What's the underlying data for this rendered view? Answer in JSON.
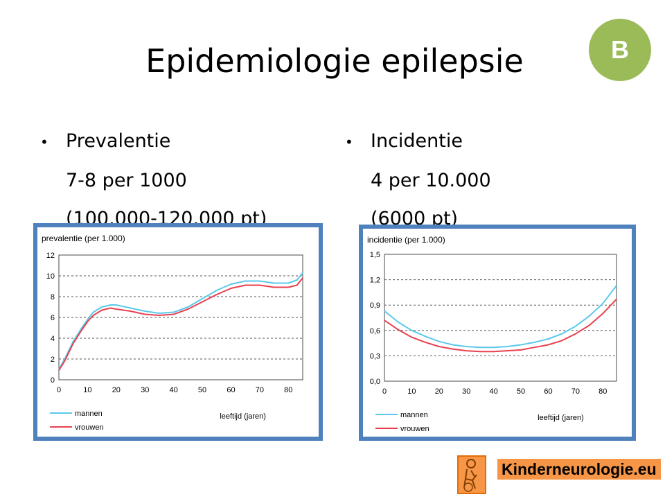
{
  "slide": {
    "title": "Epidemiologie epilepsie",
    "badge": "B"
  },
  "left_column": {
    "bullet_label": "Prevalentie",
    "line1": "7-8 per 1000",
    "line2": "(100.000-120.000 pt)"
  },
  "right_column": {
    "bullet_label": "Incidentie",
    "line1": "4 per 10.000",
    "line2": "(6000 pt)"
  },
  "logo": {
    "text": "Kinderneurologie.eu"
  },
  "colors": {
    "badge": "#9bbb59",
    "chart_frame": "#4f81bd",
    "mannen": "#5bc8ec",
    "vrouwen": "#e8404f",
    "logo_bg": "#f79646"
  },
  "chart_data": [
    {
      "type": "line",
      "title": "prevalentie (per 1.000)",
      "xlabel": "leeftijd (jaren)",
      "ylabel": "",
      "xlim": [
        0,
        85
      ],
      "ylim": [
        0,
        12
      ],
      "x_ticks": [
        "0",
        "10",
        "20",
        "30",
        "40",
        "50",
        "60",
        "70",
        "80"
      ],
      "y_ticks": [
        "0",
        "2",
        "4",
        "6",
        "8",
        "10",
        "12"
      ],
      "grid": "horizontal dashed",
      "legend": "bottom-left",
      "x": [
        0,
        2,
        5,
        8,
        10,
        12,
        15,
        18,
        20,
        25,
        30,
        35,
        40,
        45,
        50,
        55,
        60,
        65,
        70,
        75,
        80,
        83,
        85
      ],
      "series": [
        {
          "name": "mannen",
          "color": "#5bc8ec",
          "values": [
            1.0,
            2.0,
            3.7,
            5.0,
            5.8,
            6.5,
            7.0,
            7.2,
            7.2,
            6.9,
            6.6,
            6.4,
            6.5,
            7.0,
            7.8,
            8.6,
            9.2,
            9.5,
            9.5,
            9.3,
            9.3,
            9.6,
            10.3
          ]
        },
        {
          "name": "vrouwen",
          "color": "#e8404f",
          "values": [
            0.9,
            1.8,
            3.5,
            4.8,
            5.6,
            6.2,
            6.7,
            6.9,
            6.8,
            6.6,
            6.3,
            6.2,
            6.3,
            6.8,
            7.5,
            8.2,
            8.8,
            9.1,
            9.1,
            8.9,
            8.9,
            9.1,
            9.8
          ]
        }
      ]
    },
    {
      "type": "line",
      "title": "incidentie (per 1.000)",
      "xlabel": "leeftijd (jaren)",
      "ylabel": "",
      "xlim": [
        0,
        85
      ],
      "ylim": [
        0,
        1.5
      ],
      "x_ticks": [
        "0",
        "10",
        "20",
        "30",
        "40",
        "50",
        "60",
        "70",
        "80"
      ],
      "y_ticks": [
        "0,0",
        "0,3",
        "0,6",
        "0,9",
        "1,2",
        "1,5"
      ],
      "grid": "horizontal dashed",
      "legend": "bottom-left",
      "x": [
        0,
        5,
        10,
        15,
        20,
        25,
        30,
        35,
        40,
        45,
        50,
        55,
        60,
        65,
        70,
        75,
        80,
        85
      ],
      "series": [
        {
          "name": "mannen",
          "color": "#5bc8ec",
          "values": [
            0.83,
            0.7,
            0.6,
            0.53,
            0.47,
            0.43,
            0.41,
            0.4,
            0.4,
            0.41,
            0.43,
            0.46,
            0.5,
            0.56,
            0.65,
            0.77,
            0.92,
            1.13
          ]
        },
        {
          "name": "vrouwen",
          "color": "#e8404f",
          "values": [
            0.72,
            0.61,
            0.52,
            0.46,
            0.41,
            0.38,
            0.36,
            0.35,
            0.35,
            0.36,
            0.37,
            0.4,
            0.43,
            0.48,
            0.56,
            0.66,
            0.8,
            0.97
          ]
        }
      ]
    }
  ]
}
